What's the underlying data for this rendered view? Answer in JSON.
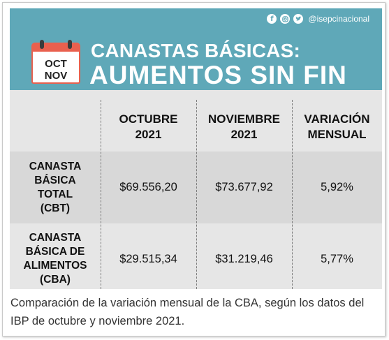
{
  "social": {
    "handle": "@isepcinacional",
    "icons": [
      "facebook-icon",
      "instagram-icon",
      "twitter-icon"
    ]
  },
  "calendar": {
    "line1": "OCT",
    "line2": "NOV"
  },
  "header": {
    "title_line1": "CANASTAS BÁSICAS:",
    "title_line2": "AUMENTOS SIN FIN"
  },
  "table": {
    "columns": [
      {
        "line1": "OCTUBRE",
        "line2": "2021"
      },
      {
        "line1": "NOVIEMBRE",
        "line2": "2021"
      },
      {
        "line1": "VARIACIÓN",
        "line2": "MENSUAL"
      }
    ],
    "rows": [
      {
        "label_lines": [
          "CANASTA",
          "BÁSICA",
          "TOTAL",
          "(CBT)"
        ],
        "values": [
          "$69.556,20",
          "$73.677,92",
          "5,92%"
        ]
      },
      {
        "label_lines": [
          "CANASTA",
          "BÁSICA DE",
          "ALIMENTOS",
          "(CBA)"
        ],
        "values": [
          "$29.515,34",
          "$31.219,46",
          "5,77%"
        ]
      }
    ]
  },
  "caption": "Comparación de la variación mensual de la CBA, según los datos del IBP de octubre y noviembre 2021.",
  "colors": {
    "header_bg": "#5fa8b8",
    "calendar_accent": "#e9604e",
    "table_bg": "#e6e6e6",
    "band_bg": "#d8d8d8"
  }
}
